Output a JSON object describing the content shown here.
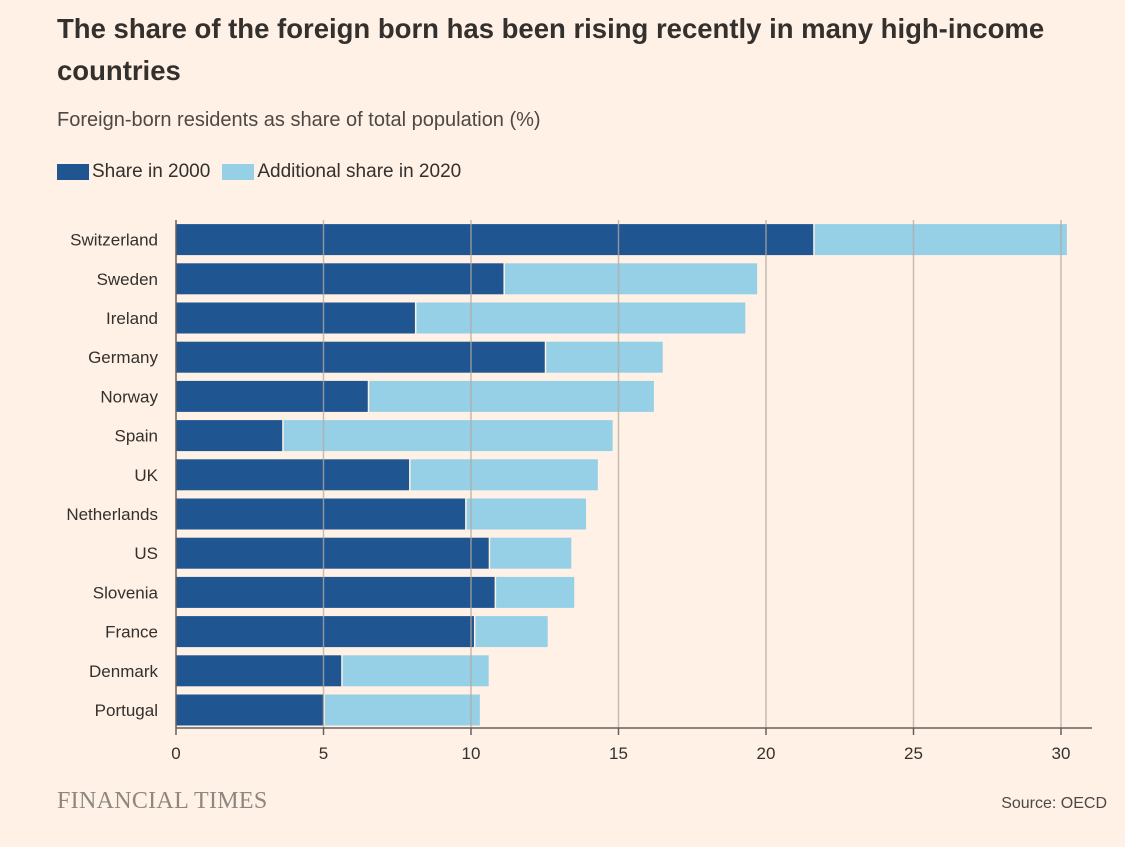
{
  "header": {
    "title": "The share of the foreign born has been rising recently in many high-income countries",
    "subtitle": "Foreign-born residents as share of total population (%)"
  },
  "legend": {
    "share_2000_label": "Share in 2000",
    "additional_2020_label": "Additional share in 2020"
  },
  "footer": {
    "brand": "FINANCIAL TIMES",
    "source": "Source: OECD"
  },
  "colors": {
    "share_2000": "#1f5591",
    "additional_2020": "#96d0e6",
    "background": "#fff1e5",
    "grid": "#b3a99f"
  },
  "chart_data": {
    "type": "bar",
    "orientation": "horizontal",
    "stacked": true,
    "categories": [
      "Switzerland",
      "Sweden",
      "Ireland",
      "Germany",
      "Norway",
      "Spain",
      "UK",
      "Netherlands",
      "US",
      "Slovenia",
      "France",
      "Denmark",
      "Portugal"
    ],
    "series": [
      {
        "name": "Share in 2000",
        "values": [
          21.6,
          11.1,
          8.1,
          12.5,
          6.5,
          3.6,
          7.9,
          9.8,
          10.6,
          10.8,
          10.1,
          5.6,
          5.0
        ]
      },
      {
        "name": "Additional share in 2020",
        "values": [
          8.6,
          8.6,
          11.2,
          4.0,
          9.7,
          11.2,
          6.4,
          4.1,
          2.8,
          2.7,
          2.5,
          5.0,
          5.3
        ]
      }
    ],
    "xlim": [
      0,
      31
    ],
    "xticks": [
      0,
      5,
      10,
      15,
      20,
      25,
      30
    ],
    "grid": true,
    "legend_position": "top-left"
  }
}
